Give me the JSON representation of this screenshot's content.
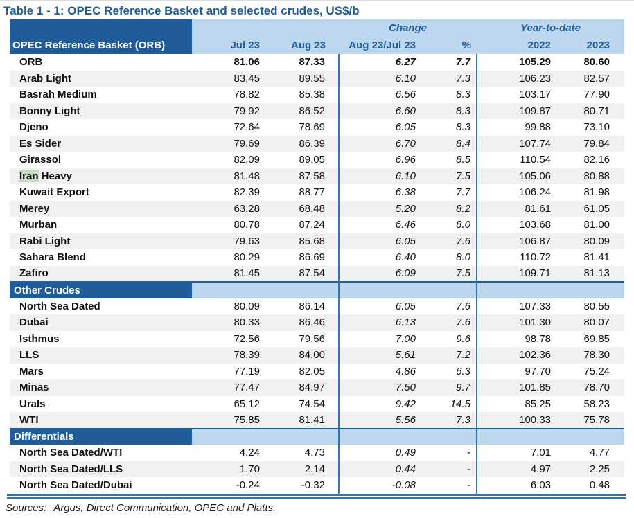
{
  "title": "Table 1 - 1: OPEC Reference Basket and selected crudes, US$/b",
  "colors": {
    "dark-blue": "#1F5C99",
    "light-blue": "#BDD7EE",
    "line-blue": "#2E75B6",
    "stripe": "#F1F1F1",
    "hl-green": "#C9DAC4"
  },
  "table": {
    "corner_header": "OPEC Reference Basket (ORB)",
    "group_headers": {
      "change": "Change",
      "ytd": "Year-to-date"
    },
    "columns": [
      "Jul 23",
      "Aug 23",
      "Aug 23/Jul 23",
      "%",
      "2022",
      "2023"
    ],
    "sections": [
      {
        "header": null,
        "rows": [
          {
            "name": "ORB",
            "bold": true,
            "values": [
              "81.06",
              "87.33",
              "6.27",
              "7.7",
              "105.29",
              "80.60"
            ]
          },
          {
            "name": "Arab Light",
            "values": [
              "83.45",
              "89.55",
              "6.10",
              "7.3",
              "106.23",
              "82.57"
            ]
          },
          {
            "name": "Basrah Medium",
            "values": [
              "78.82",
              "85.38",
              "6.56",
              "8.3",
              "103.17",
              "77.90"
            ]
          },
          {
            "name": "Bonny Light",
            "values": [
              "79.92",
              "86.52",
              "6.60",
              "8.3",
              "109.87",
              "80.71"
            ]
          },
          {
            "name": "Djeno",
            "values": [
              "72.64",
              "78.69",
              "6.05",
              "8.3",
              "99.88",
              "73.10"
            ]
          },
          {
            "name": "Es Sider",
            "values": [
              "79.69",
              "86.39",
              "6.70",
              "8.4",
              "107.74",
              "79.84"
            ]
          },
          {
            "name": "Girassol",
            "values": [
              "82.09",
              "89.05",
              "6.96",
              "8.5",
              "110.54",
              "82.16"
            ]
          },
          {
            "name": "Iran Heavy",
            "hl": "Iran",
            "rest": " Heavy",
            "values": [
              "81.48",
              "87.58",
              "6.10",
              "7.5",
              "105.06",
              "80.88"
            ]
          },
          {
            "name": "Kuwait Export",
            "values": [
              "82.39",
              "88.77",
              "6.38",
              "7.7",
              "106.24",
              "81.98"
            ]
          },
          {
            "name": "Merey",
            "values": [
              "63.28",
              "68.48",
              "5.20",
              "8.2",
              "81.61",
              "61.05"
            ]
          },
          {
            "name": "Murban",
            "values": [
              "80.78",
              "87.24",
              "6.46",
              "8.0",
              "103.68",
              "81.00"
            ]
          },
          {
            "name": "Rabi Light",
            "values": [
              "79.63",
              "85.68",
              "6.05",
              "7.6",
              "106.87",
              "80.09"
            ]
          },
          {
            "name": "Sahara Blend",
            "values": [
              "80.29",
              "86.69",
              "6.40",
              "8.0",
              "110.72",
              "81.41"
            ]
          },
          {
            "name": "Zafiro",
            "values": [
              "81.45",
              "87.54",
              "6.09",
              "7.5",
              "109.71",
              "81.13"
            ]
          }
        ]
      },
      {
        "header": "Other Crudes",
        "rows": [
          {
            "name": "North Sea Dated",
            "values": [
              "80.09",
              "86.14",
              "6.05",
              "7.6",
              "107.33",
              "80.55"
            ]
          },
          {
            "name": "Dubai",
            "values": [
              "80.33",
              "86.46",
              "6.13",
              "7.6",
              "101.30",
              "80.07"
            ]
          },
          {
            "name": "Isthmus",
            "values": [
              "72.56",
              "79.56",
              "7.00",
              "9.6",
              "98.78",
              "69.85"
            ]
          },
          {
            "name": "LLS",
            "values": [
              "78.39",
              "84.00",
              "5.61",
              "7.2",
              "102.36",
              "78.30"
            ]
          },
          {
            "name": "Mars",
            "values": [
              "77.19",
              "82.05",
              "4.86",
              "6.3",
              "97.70",
              "75.24"
            ]
          },
          {
            "name": "Minas",
            "values": [
              "77.47",
              "84.97",
              "7.50",
              "9.7",
              "101.85",
              "78.70"
            ]
          },
          {
            "name": "Urals",
            "values": [
              "65.12",
              "74.54",
              "9.42",
              "14.5",
              "85.25",
              "58.23"
            ]
          },
          {
            "name": "WTI",
            "values": [
              "75.85",
              "81.41",
              "5.56",
              "7.3",
              "100.33",
              "75.78"
            ]
          }
        ]
      },
      {
        "header": "Differentials",
        "rows": [
          {
            "name": "North Sea Dated/WTI",
            "values": [
              "4.24",
              "4.73",
              "0.49",
              "-",
              "7.01",
              "4.77"
            ]
          },
          {
            "name": "North Sea Dated/LLS",
            "values": [
              "1.70",
              "2.14",
              "0.44",
              "-",
              "4.97",
              "2.25"
            ]
          },
          {
            "name": "North Sea Dated/Dubai",
            "values": [
              "-0.24",
              "-0.32",
              "-0.08",
              "-",
              "6.03",
              "0.48"
            ]
          }
        ]
      }
    ]
  },
  "footer": {
    "sources_label": "Sources:",
    "sources_text": "Argus, Direct Communication, OPEC and Platts."
  }
}
